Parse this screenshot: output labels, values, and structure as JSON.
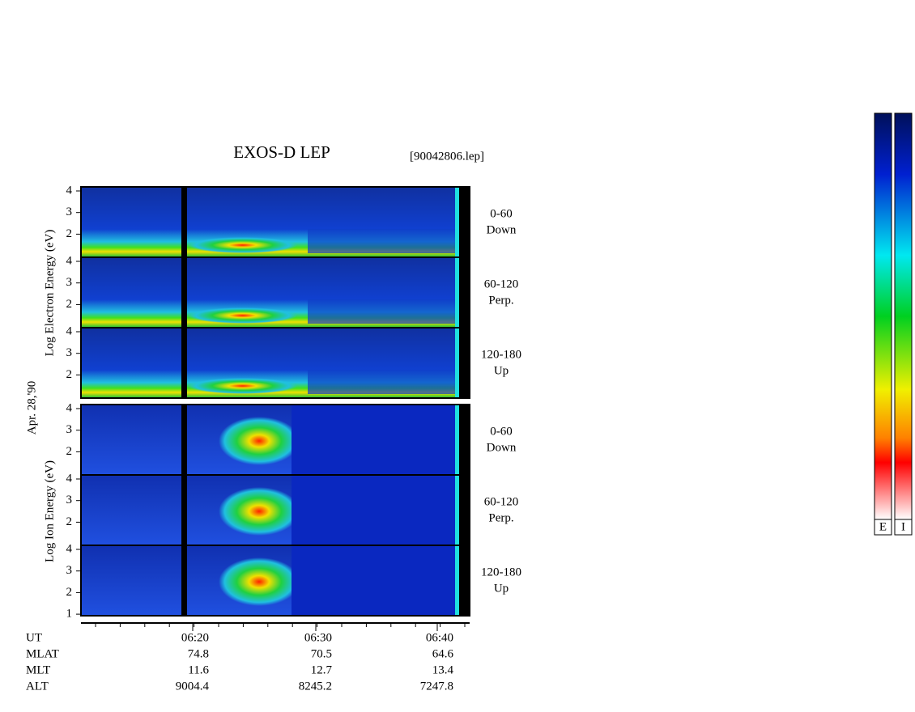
{
  "title": "EXOS-D LEP",
  "file": "[90042806.lep]",
  "date": "Apr. 28,'90",
  "electron_label": "Log Electron Energy (eV)",
  "ion_label": "Log Ion Energy (eV)",
  "panels": [
    {
      "angle": "0-60",
      "direction": "Down",
      "yticks": [
        2,
        3,
        4
      ]
    },
    {
      "angle": "60-120",
      "direction": "Perp.",
      "yticks": [
        2,
        3,
        4
      ]
    },
    {
      "angle": "120-180",
      "direction": "Up",
      "yticks": [
        2,
        3,
        4
      ]
    },
    {
      "angle": "0-60",
      "direction": "Down",
      "yticks": [
        2,
        3,
        4
      ]
    },
    {
      "angle": "60-120",
      "direction": "Perp.",
      "yticks": [
        2,
        3,
        4
      ]
    },
    {
      "angle": "120-180",
      "direction": "Up",
      "yticks": [
        1,
        2,
        3,
        4
      ]
    }
  ],
  "rows": [
    {
      "name": "UT",
      "values": [
        "06:20",
        "06:30",
        "06:40"
      ]
    },
    {
      "name": "MLAT",
      "values": [
        74.8,
        70.5,
        64.6
      ]
    },
    {
      "name": "MLT",
      "values": [
        11.6,
        12.7,
        13.4
      ]
    },
    {
      "name": "ALT",
      "values": [
        9004.4,
        8245.2,
        7247.8
      ]
    }
  ],
  "colorbars": [
    "E",
    "I"
  ]
}
